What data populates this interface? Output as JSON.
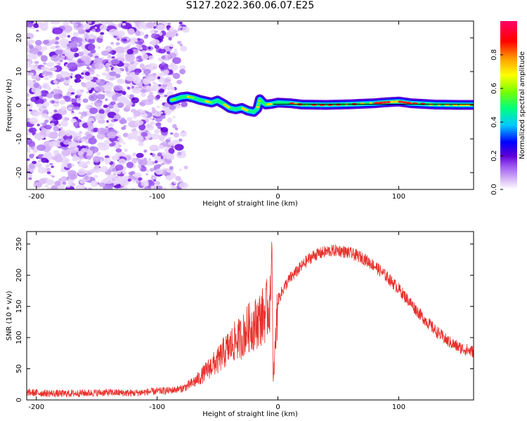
{
  "title": "S127.2022.360.06.07.E25",
  "chart_data": [
    {
      "type": "heatmap",
      "xlabel": "Height of straight line (km)",
      "ylabel": "Frequency (Hz)",
      "xlim": [
        -208,
        162
      ],
      "ylim": [
        -25,
        25
      ],
      "xticks": [
        -200,
        -100,
        0,
        100
      ],
      "yticks": [
        -20,
        -10,
        0,
        10,
        20
      ],
      "colorbar": {
        "label": "Normalized spectral amplitude",
        "range": [
          0,
          1
        ],
        "ticks": [
          "0.0",
          "0.2",
          "0.4",
          "0.6",
          "0.8"
        ],
        "colormap": [
          "#ffffff",
          "#d8b7f7",
          "#9a55f0",
          "#5f00d8",
          "#0000ff",
          "#00c8ff",
          "#00ff80",
          "#78ff00",
          "#ffff00",
          "#ff9a00",
          "#ff0000",
          "#ff0066"
        ]
      },
      "noise_region_x": [
        -208,
        -76
      ],
      "ridge": {
        "x": [
          -88,
          -85,
          -80,
          -75,
          -70,
          -65,
          -60,
          -55,
          -50,
          -45,
          -40,
          -35,
          -30,
          -25,
          -20,
          -17,
          -15,
          -12,
          -10,
          -5,
          0,
          10,
          20,
          40,
          60,
          80,
          90,
          100,
          110,
          130,
          150,
          162
        ],
        "frequency": [
          1.5,
          1.8,
          2.4,
          2.6,
          2.2,
          1.6,
          1.2,
          0.8,
          1.4,
          0.4,
          -0.8,
          -1.2,
          -0.8,
          -1.6,
          -2.0,
          -1.0,
          1.8,
          0.6,
          0.2,
          0.4,
          0.8,
          0.6,
          0.2,
          0.1,
          0.3,
          0.6,
          0.9,
          1.1,
          0.6,
          0.2,
          0.1,
          0.1
        ]
      },
      "reference_line_frequency": 0.3
    },
    {
      "type": "line",
      "xlabel": "Height of straight line (km)",
      "ylabel": "SNR (10 * v/v)",
      "xlim": [
        -208,
        162
      ],
      "ylim": [
        0,
        270
      ],
      "xticks": [
        -200,
        -100,
        0,
        100
      ],
      "yticks": [
        0,
        50,
        100,
        150,
        200,
        250
      ],
      "series": [
        {
          "color": "#e8302b",
          "x": [
            -208,
            -180,
            -160,
            -140,
            -120,
            -100,
            -90,
            -80,
            -75,
            -70,
            -65,
            -60,
            -55,
            -50,
            -45,
            -40,
            -35,
            -30,
            -25,
            -20,
            -15,
            -10,
            -6,
            -5,
            -4,
            0,
            5,
            10,
            15,
            20,
            25,
            30,
            40,
            50,
            60,
            70,
            80,
            90,
            100,
            110,
            120,
            130,
            140,
            150,
            160,
            162
          ],
          "y": [
            12,
            10,
            11,
            12,
            11,
            14,
            15,
            18,
            22,
            28,
            35,
            45,
            55,
            62,
            75,
            85,
            95,
            100,
            115,
            120,
            130,
            140,
            160,
            265,
            25,
            160,
            180,
            195,
            205,
            215,
            225,
            232,
            238,
            240,
            235,
            228,
            215,
            198,
            178,
            155,
            132,
            112,
            95,
            84,
            78,
            78
          ]
        }
      ]
    }
  ]
}
